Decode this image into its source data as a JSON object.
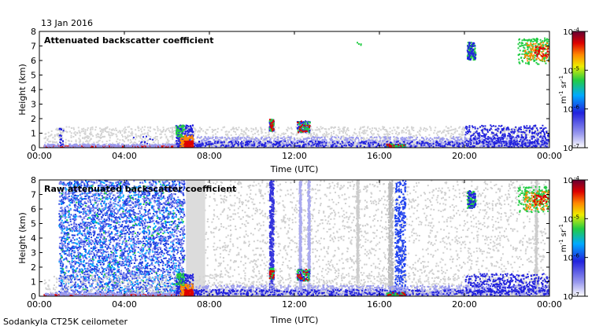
{
  "date": "13 Jan 2016",
  "instrument": "Sodankyla CT25K ceilometer",
  "colors": {
    "cloud_gray": "#d3d3d3",
    "low_blue": "#9999ee",
    "mid_blue": "#2222dd",
    "green": "#22cc44",
    "orange": "#ff8800",
    "red": "#dd0000",
    "dark_red": "#800000"
  },
  "chart_data": [
    {
      "type": "heatmap",
      "title": "Attenuated backscatter coefficient",
      "xlabel": "Time (UTC)",
      "ylabel": "Height (km)",
      "x_ticks": [
        "00:00",
        "04:00",
        "08:00",
        "12:00",
        "16:00",
        "20:00",
        "00:00"
      ],
      "y_ticks": [
        "0",
        "1",
        "2",
        "3",
        "4",
        "5",
        "6",
        "7",
        "8"
      ],
      "xlim_hours": [
        0,
        24
      ],
      "ylim_km": [
        0,
        8
      ],
      "colorbar": {
        "scale": "log",
        "range": [
          1e-07,
          0.0001
        ],
        "ticks": [
          "10",
          "10",
          "10",
          "10"
        ],
        "exponents": [
          "-7",
          "-6",
          "-5",
          "-4"
        ],
        "unit_prefix": "m",
        "unit_exp1": "-1",
        "unit_mid": " sr",
        "unit_exp2": "-1"
      }
    },
    {
      "type": "heatmap",
      "title": "Raw attenuated backscatter coefficient",
      "xlabel": "Time (UTC)",
      "ylabel": "Height (km)",
      "x_ticks": [
        "00:00",
        "04:00",
        "08:00",
        "12:00",
        "16:00",
        "20:00",
        "00:00"
      ],
      "y_ticks": [
        "0",
        "1",
        "2",
        "3",
        "4",
        "5",
        "6",
        "7",
        "8"
      ],
      "xlim_hours": [
        0,
        24
      ],
      "ylim_km": [
        0,
        8
      ],
      "colorbar": {
        "scale": "log",
        "range": [
          1e-07,
          0.0001
        ],
        "ticks": [
          "10",
          "10",
          "10",
          "10"
        ],
        "exponents": [
          "-7",
          "-6",
          "-5",
          "-4"
        ],
        "unit_prefix": "m",
        "unit_exp1": "-1",
        "unit_mid": " sr",
        "unit_exp2": "-1"
      }
    }
  ]
}
